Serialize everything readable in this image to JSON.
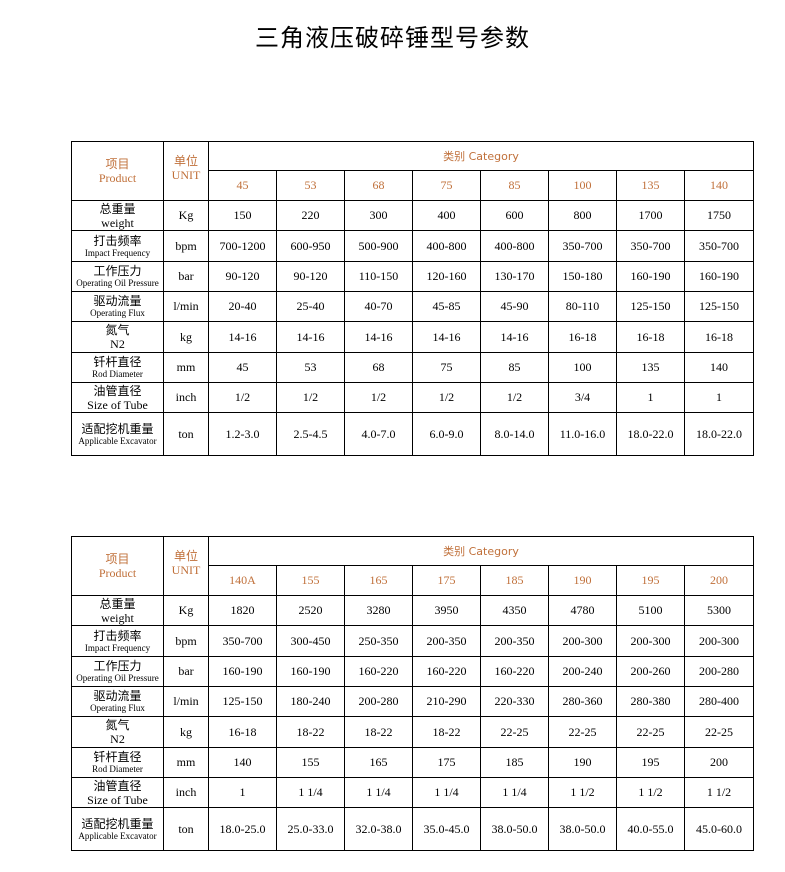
{
  "title": "三角液压破碎锤型号参数",
  "header": {
    "product_zh": "项目",
    "product_en": "Product",
    "unit_zh": "单位",
    "unit_en": "UNIT",
    "category": "类别 Category"
  },
  "rows": [
    {
      "zh": "总重量",
      "en": "weight",
      "en_big": true,
      "unit": "Kg"
    },
    {
      "zh": "打击频率",
      "en": "Impact Frequency",
      "unit": "bpm"
    },
    {
      "zh": "工作压力",
      "en": "Operating Oil Pressure",
      "unit": "bar"
    },
    {
      "zh": "驱动流量",
      "en": "Operating Flux",
      "unit": "l/min"
    },
    {
      "zh": "氮气",
      "en": "N2",
      "en_big": true,
      "unit": "kg"
    },
    {
      "zh": "钎杆直径",
      "en": "Rod Diameter",
      "unit": "mm"
    },
    {
      "zh": "油管直径",
      "en": "Size of Tube",
      "en_big": true,
      "unit": "inch"
    },
    {
      "zh": "适配挖机重量",
      "en": "Applicable Excavator",
      "unit": "ton"
    }
  ],
  "tables": [
    {
      "models": [
        "45",
        "53",
        "68",
        "75",
        "85",
        "100",
        "135",
        "140"
      ],
      "values": [
        [
          "150",
          "220",
          "300",
          "400",
          "600",
          "800",
          "1700",
          "1750"
        ],
        [
          "700-1200",
          "600-950",
          "500-900",
          "400-800",
          "400-800",
          "350-700",
          "350-700",
          "350-700"
        ],
        [
          "90-120",
          "90-120",
          "110-150",
          "120-160",
          "130-170",
          "150-180",
          "160-190",
          "160-190"
        ],
        [
          "20-40",
          "25-40",
          "40-70",
          "45-85",
          "45-90",
          "80-110",
          "125-150",
          "125-150"
        ],
        [
          "14-16",
          "14-16",
          "14-16",
          "14-16",
          "14-16",
          "16-18",
          "16-18",
          "16-18"
        ],
        [
          "45",
          "53",
          "68",
          "75",
          "85",
          "100",
          "135",
          "140"
        ],
        [
          "1/2",
          "1/2",
          "1/2",
          "1/2",
          "1/2",
          "3/4",
          "1",
          "1"
        ],
        [
          "1.2-3.0",
          "2.5-4.5",
          "4.0-7.0",
          "6.0-9.0",
          "8.0-14.0",
          "11.0-16.0",
          "18.0-22.0",
          "18.0-22.0"
        ]
      ]
    },
    {
      "models": [
        "140A",
        "155",
        "165",
        "175",
        "185",
        "190",
        "195",
        "200"
      ],
      "values": [
        [
          "1820",
          "2520",
          "3280",
          "3950",
          "4350",
          "4780",
          "5100",
          "5300"
        ],
        [
          "350-700",
          "300-450",
          "250-350",
          "200-350",
          "200-350",
          "200-300",
          "200-300",
          "200-300"
        ],
        [
          "160-190",
          "160-190",
          "160-220",
          "160-220",
          "160-220",
          "200-240",
          "200-260",
          "200-280"
        ],
        [
          "125-150",
          "180-240",
          "200-280",
          "210-290",
          "220-330",
          "280-360",
          "280-380",
          "280-400"
        ],
        [
          "16-18",
          "18-22",
          "18-22",
          "18-22",
          "22-25",
          "22-25",
          "22-25",
          "22-25"
        ],
        [
          "140",
          "155",
          "165",
          "175",
          "185",
          "190",
          "195",
          "200"
        ],
        [
          "1",
          "1 1/4",
          "1 1/4",
          "1 1/4",
          "1 1/4",
          "1 1/2",
          "1 1/2",
          "1 1/2"
        ],
        [
          "18.0-25.0",
          "25.0-33.0",
          "32.0-38.0",
          "35.0-45.0",
          "38.0-50.0",
          "38.0-50.0",
          "40.0-55.0",
          "45.0-60.0"
        ]
      ]
    }
  ],
  "colors": {
    "header_accent": "#c0703a"
  }
}
